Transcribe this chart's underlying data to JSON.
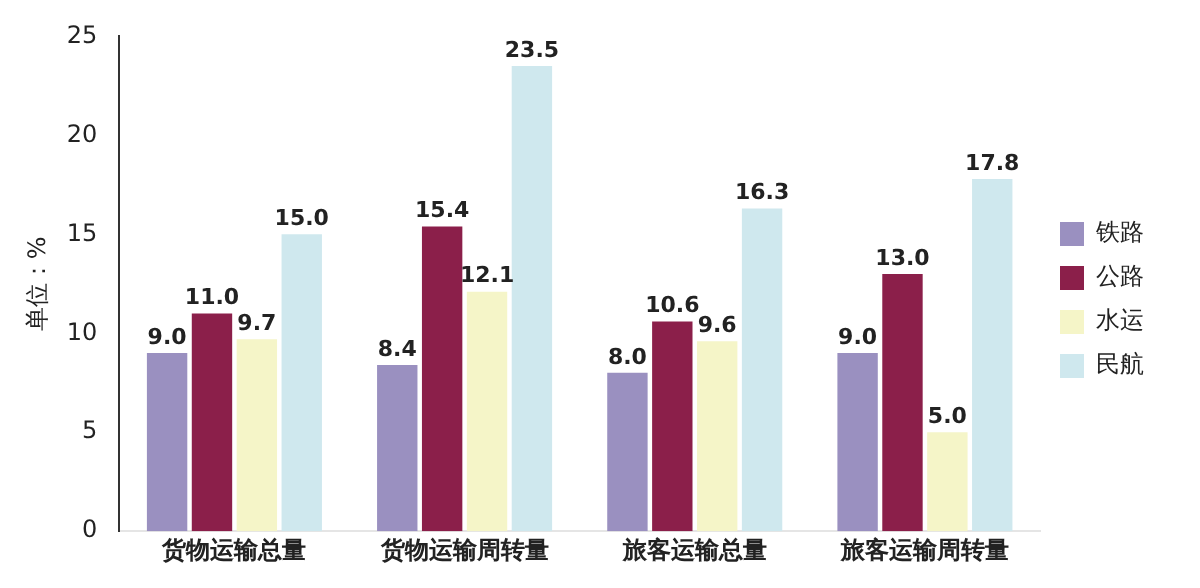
{
  "chart_data": {
    "type": "bar",
    "ylabel": "单位：%",
    "categories": [
      "货物运输总量",
      "货物运输周转量",
      "旅客运输总量",
      "旅客运输周转量"
    ],
    "series": [
      {
        "name": "铁路",
        "color": "#9a90c0",
        "values": [
          9.0,
          8.4,
          8.0,
          9.0
        ],
        "value_labels": [
          "9.0",
          "8.4",
          "8.0",
          "9.0"
        ]
      },
      {
        "name": "公路",
        "color": "#8b1f4a",
        "values": [
          11.0,
          15.4,
          10.6,
          13.0
        ],
        "value_labels": [
          "11.0",
          "15.4",
          "10.6",
          "13.0"
        ]
      },
      {
        "name": "水运",
        "color": "#f5f5c8",
        "values": [
          9.7,
          12.1,
          9.6,
          5.0
        ],
        "value_labels": [
          "9.7",
          "12.1",
          "9.6",
          "5.0"
        ]
      },
      {
        "name": "民航",
        "color": "#cfe8ee",
        "values": [
          15.0,
          23.5,
          16.3,
          17.8
        ],
        "value_labels": [
          "15.0",
          "23.5",
          "16.3",
          "17.8"
        ]
      }
    ],
    "ylim": [
      0,
      25
    ],
    "yticks": [
      0,
      5,
      10,
      15,
      20,
      25
    ],
    "grid": false,
    "legend": "right"
  }
}
